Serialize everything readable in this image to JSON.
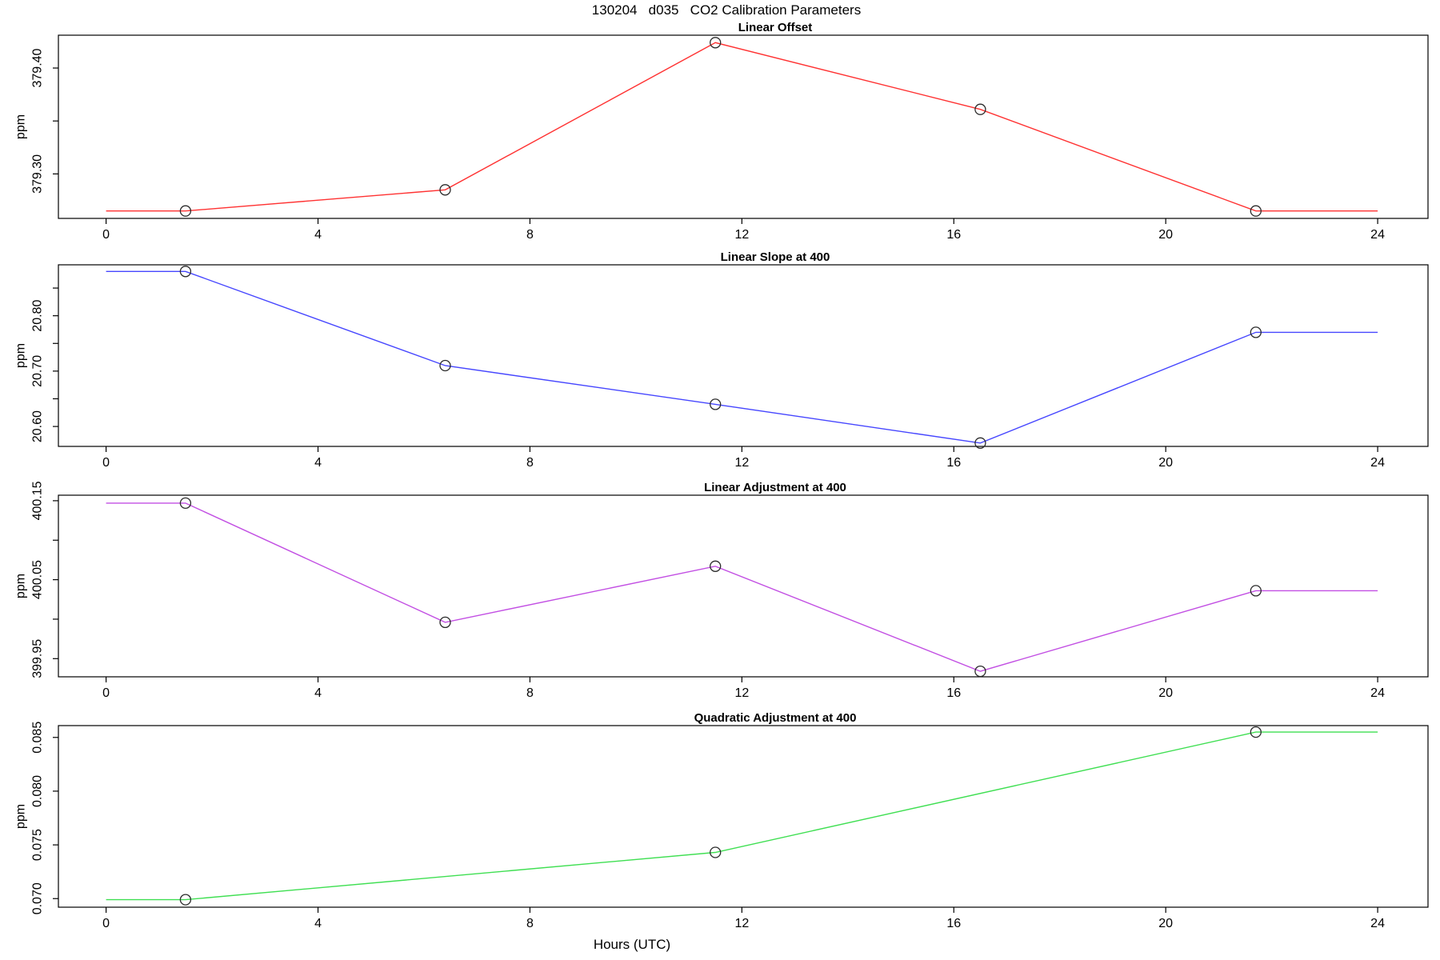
{
  "title": "130204   d035   CO2 Calibration Parameters",
  "xlabel": "Hours (UTC)",
  "x_axis": {
    "xlim": [
      -0.9,
      24.95
    ],
    "xticks": [
      0,
      4,
      8,
      12,
      16,
      20,
      24
    ],
    "xtick_labels": [
      "0",
      "4",
      "8",
      "12",
      "16",
      "20",
      "24"
    ]
  },
  "style": {
    "axis_color": "#000000",
    "marker_color": "#2b2b2b",
    "background": "#ffffff"
  },
  "chart_data": [
    {
      "type": "line",
      "title": "Linear Offset",
      "ylabel": "ppm",
      "color": "#ff3232",
      "x": [
        1.5,
        6.4,
        11.5,
        16.5,
        21.7
      ],
      "y": [
        379.265,
        379.285,
        379.424,
        379.361,
        379.265
      ],
      "flat_ends": [
        0,
        24
      ],
      "ylim": [
        379.258,
        379.431
      ],
      "yticks": [
        379.3,
        379.35,
        379.4
      ],
      "ytick_labels": [
        "379.30",
        "",
        "379.40"
      ]
    },
    {
      "type": "line",
      "title": "Linear Slope at 400",
      "ylabel": "ppm",
      "color": "#4646ff",
      "x": [
        1.5,
        6.4,
        11.5,
        16.5,
        21.7
      ],
      "y": [
        20.88,
        20.71,
        20.64,
        20.57,
        20.77
      ],
      "flat_ends": [
        0,
        24
      ],
      "ylim": [
        20.564,
        20.892
      ],
      "yticks": [
        20.6,
        20.65,
        20.7,
        20.75,
        20.8,
        20.85
      ],
      "ytick_labels": [
        "20.60",
        "",
        "20.70",
        "",
        "20.80",
        ""
      ]
    },
    {
      "type": "line",
      "title": "Linear Adjustment at 400",
      "ylabel": "ppm",
      "color": "#c24fe3",
      "x": [
        1.5,
        6.4,
        11.5,
        16.5,
        21.7
      ],
      "y": [
        400.147,
        399.996,
        400.067,
        399.934,
        400.036
      ],
      "flat_ends": [
        0,
        24
      ],
      "ylim": [
        399.927,
        400.157
      ],
      "yticks": [
        399.95,
        400.0,
        400.05,
        400.1,
        400.15
      ],
      "ytick_labels": [
        "399.95",
        "",
        "400.05",
        "",
        "400.15"
      ]
    },
    {
      "type": "line",
      "title": "Quadratic Adjustment at 400",
      "ylabel": "ppm",
      "color": "#3fdf52",
      "x": [
        1.5,
        11.5,
        21.7
      ],
      "y": [
        0.0699,
        0.0743,
        0.0855
      ],
      "flat_ends": [
        0,
        24
      ],
      "ylim": [
        0.0692,
        0.0861
      ],
      "yticks": [
        0.07,
        0.075,
        0.08,
        0.085
      ],
      "ytick_labels": [
        "0.070",
        "0.075",
        "0.080",
        "0.085"
      ]
    }
  ]
}
